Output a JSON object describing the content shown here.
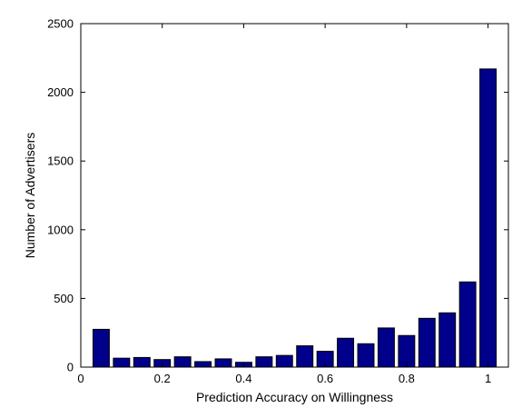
{
  "chart_data": {
    "type": "bar",
    "title": "",
    "xlabel": "Prediction Accuracy on Willingness",
    "ylabel": "Number of Advertisers",
    "xlim": [
      0,
      1.05
    ],
    "ylim": [
      0,
      2500
    ],
    "xticks": [
      0,
      0.2,
      0.4,
      0.6,
      0.8,
      1
    ],
    "xtick_labels": [
      "0",
      "0.2",
      "0.4",
      "0.6",
      "0.8",
      "1"
    ],
    "yticks": [
      0,
      500,
      1000,
      1500,
      2000,
      2500
    ],
    "ytick_labels": [
      "0",
      "500",
      "1000",
      "1500",
      "2000",
      "2500"
    ],
    "bar_width": 0.04,
    "bar_color": "#00008b",
    "grid": false,
    "x": [
      0.05,
      0.1,
      0.15,
      0.2,
      0.25,
      0.3,
      0.35,
      0.4,
      0.45,
      0.5,
      0.55,
      0.6,
      0.65,
      0.7,
      0.75,
      0.8,
      0.85,
      0.9,
      0.95,
      1.0
    ],
    "values": [
      275,
      65,
      70,
      55,
      75,
      40,
      60,
      35,
      75,
      85,
      155,
      115,
      210,
      170,
      285,
      230,
      355,
      395,
      620,
      2170
    ]
  }
}
